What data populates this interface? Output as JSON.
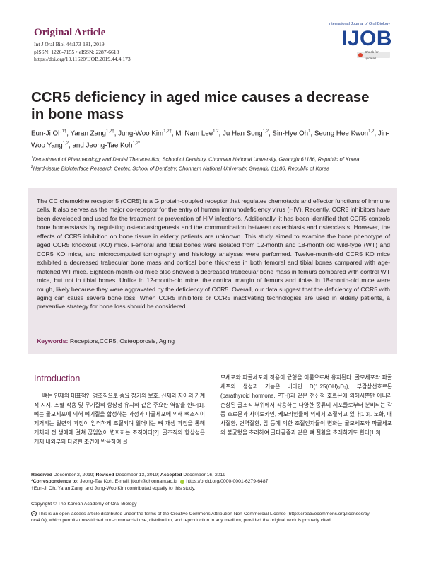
{
  "header": {
    "article_type": "Original Article",
    "citation": "Int J Oral Biol 44:173-181, 2019",
    "issn": "pISSN: 1226-7155 • eISSN: 2287-6618",
    "doi": "https://doi.org/10.11620/IJOB.2019.44.4.173",
    "journal_name": "International Journal of Oral Biology",
    "logo_text": "IJOB",
    "updates_badge": "Check for updates"
  },
  "article": {
    "title": "CCR5 deficiency in aged mice causes a decrease in bone mass",
    "authors": [
      {
        "name": "Eun-Ji Oh",
        "sup": "1†"
      },
      {
        "name": "Yaran Zang",
        "sup": "1,2†"
      },
      {
        "name": "Jung-Woo Kim",
        "sup": "1,2†"
      },
      {
        "name": "Mi Nam Lee",
        "sup": "1,2"
      },
      {
        "name": "Ju Han Song",
        "sup": "1,2"
      },
      {
        "name": "Sin-Hye Oh",
        "sup": "1"
      },
      {
        "name": "Seung Hee Kwon",
        "sup": "1,2"
      },
      {
        "name": "Jin-Woo Yang",
        "sup": "1,2"
      },
      {
        "name": "Jeong-Tae Koh",
        "sup": "1,2*"
      }
    ],
    "affiliations": [
      {
        "sup": "1",
        "text": "Department of Pharmacology and Dental Therapeutics, School of Dentistry, Chonnam National University, Gwangju 61186, Republic of Korea"
      },
      {
        "sup": "2",
        "text": "Hard-tissue Biointerface Research Center, School of Dentistry, Chonnam National University, Gwangju 61186, Republic of Korea"
      }
    ],
    "abstract": "The CC chemokine receptor 5 (CCR5) is a G protein-coupled receptor that regulates chemotaxis and effector functions of immune cells. It also serves as the major co-receptor for the entry of human immunodeficiency virus (HIV). Recently, CCR5 inhibitors have been developed and used for the treatment or prevention of HIV infections. Additionally, it has been identified that CCR5 controls bone homeostasis by regulating osteoclastogenesis and the communication between osteoblasts and osteoclasts. However, the effects of CCR5 inhibition on bone tissue in elderly patients are unknown. This study aimed to examine the bone phenotype of aged CCR5 knockout (KO) mice. Femoral and tibial bones were isolated from 12-month and 18-month old wild-type (WT) and CCR5 KO mice, and microcomputed tomography and histology analyses were performed. Twelve-month-old CCR5 KO mice exhibited a decreased trabecular bone mass and cortical bone thickness in both femoral and tibial bones compared with age-matched WT mice. Eighteen-month-old mice also showed a decreased trabecular bone mass in femurs compared with control WT mice, but not in tibial bones. Unlike in 12-month-old mice, the cortical margin of femurs and tibias in 18-month-old mice were rough, likely because they were aggravated by the deficiency of CCR5. Overall, our data suggest that the deficiency of CCR5 with aging can cause severe bone loss. When CCR5 inhibitors or CCR5 inactivating technologies are used in elderly patients, a preventive strategy for bone loss should be considered.",
    "keywords_label": "Keywords:",
    "keywords": "Receptors,CCR5, Osteoporosis, Aging"
  },
  "body": {
    "section_heading": "Introduction",
    "col1": "뼈는 인체의 대표적인 경조직으로 중요 장기의 보호, 신체와 치아의 기계적 지지, 조혈 작용 및 무기질의 항상성 유지와 같은 주요한 역할을 한다[1]. 뼈는 골모세포에 의해 뼈기질을 합성하는 과정과 파골세포에 의해 뼈조직이 제거되는 일련의 과정이 엄격하게 조절되며 일어나는 뼈 재생 과정을 통해 개체의 전 생애에 걸쳐 끊임없이 변화하는 조직이다[2]. 골조직의 항상성은 개체 내외부의 다양한 조건에 반응하여 골",
    "col2": "모세포와 파골세포의 작용이 균형을 이룸으로써 유지된다. 골모세포와 파골세포의 생성과 기능은 비타민 D(1,25(OH)₂D₃), 부갑상선호르몬(parathyroid hormone, PTH)과 같은 전신적 호르몬에 의해서뿐만 아니라 손상된 골조직 부위에서 작용하는 다양한 종류의 세포들로부터 분비되는 각종 호르몬과 사이토카인, 케모카인들에 의해서 조절되고 있다[1,3]. 노화, 대사질환, 면역질환, 암 등에 의한 조절인자들이 변화는 골모세포와 파골세포의 불균형을 초래하여 골다공증과 같은 뼈 질환을 초래하기도 한다[1,3]."
  },
  "footnotes": {
    "received_label": "Received",
    "received": "December 2, 2019;",
    "revised_label": "Revised",
    "revised": "December 13, 2019;",
    "accepted_label": "Accepted",
    "accepted": "December 16, 2019",
    "correspondence_label": "*Correspondence to:",
    "correspondence": "Jeong-Tae Koh, E-mail: jtkoh@chonnam.ac.kr",
    "orcid": "https://orcid.org/0000-0001-6279-6487",
    "equal_contribution": "†Eun-Ji Oh, Yaran Zang, and Jung-Woo Kim contributed equally to this study.",
    "copyright": "Copyright © The Korean Academy of Oral Biology",
    "license": "This is an open-access article distributed under the terms of the Creative Commons Attribution Non-Commercial License (http://creativecommons.org/licenses/by-nc/4.0/), which permits unrestricted non-commercial use, distribution, and reproduction in any medium, provided the original work is properly cited.",
    "cc_icon": "cc-icon"
  },
  "colors": {
    "accent": "#7b2456",
    "logo": "#1f4593",
    "abstract_bg": "#ece5ea"
  }
}
